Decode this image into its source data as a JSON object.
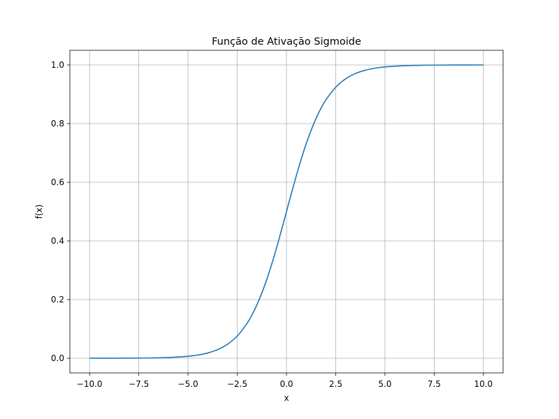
{
  "chart_data": {
    "type": "line",
    "title": "Função de Ativação Sigmoide",
    "xlabel": "x",
    "ylabel": "f(x)",
    "xlim": [
      -11.0,
      11.0
    ],
    "ylim": [
      -0.05,
      1.05
    ],
    "grid": true,
    "legend": "none",
    "x_ticks": [
      -10.0,
      -7.5,
      -5.0,
      -2.5,
      0.0,
      2.5,
      5.0,
      7.5,
      10.0
    ],
    "x_tick_labels": [
      "−10.0",
      "−7.5",
      "−5.0",
      "−2.5",
      "0.0",
      "2.5",
      "5.0",
      "7.5",
      "10.0"
    ],
    "y_ticks": [
      0.0,
      0.2,
      0.4,
      0.6,
      0.8,
      1.0
    ],
    "y_tick_labels": [
      "0.0",
      "0.2",
      "0.4",
      "0.6",
      "0.8",
      "1.0"
    ],
    "series": [
      {
        "color": "#1f77b4",
        "x": [
          -10,
          -9,
          -8,
          -7,
          -6,
          -5,
          -4.5,
          -4,
          -3.5,
          -3,
          -2.5,
          -2,
          -1.75,
          -1.5,
          -1.25,
          -1,
          -0.75,
          -0.5,
          -0.25,
          0,
          0.25,
          0.5,
          0.75,
          1,
          1.25,
          1.5,
          1.75,
          2,
          2.5,
          3,
          3.5,
          4,
          4.5,
          5,
          6,
          7,
          8,
          9,
          10
        ],
        "y": [
          4.54e-05,
          0.0001234,
          0.0003354,
          0.000911,
          0.002473,
          0.006693,
          0.01099,
          0.01799,
          0.02931,
          0.04743,
          0.07586,
          0.1192,
          0.148,
          0.1824,
          0.2227,
          0.2689,
          0.3208,
          0.3775,
          0.4378,
          0.5,
          0.5622,
          0.6225,
          0.6792,
          0.7311,
          0.7773,
          0.8176,
          0.852,
          0.8808,
          0.9241,
          0.9526,
          0.9707,
          0.982,
          0.989,
          0.9933,
          0.9975,
          0.9991,
          0.9997,
          0.9999,
          1.0
        ]
      }
    ]
  }
}
